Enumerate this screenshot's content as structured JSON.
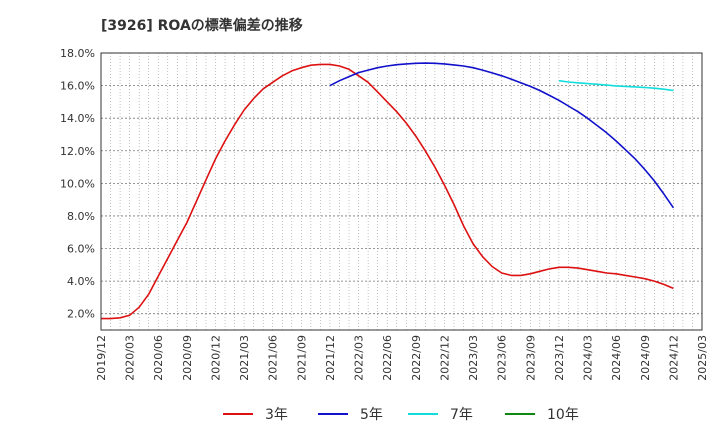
{
  "chart_data": {
    "type": "line",
    "title": "[3926]  ROAの標準偏差の推移",
    "xlabel": "",
    "ylabel": "",
    "ylim": [
      1.0,
      18.0
    ],
    "y_ticks": [
      "2.0%",
      "4.0%",
      "6.0%",
      "8.0%",
      "10.0%",
      "12.0%",
      "14.0%",
      "16.0%",
      "18.0%"
    ],
    "y_tick_values": [
      2,
      4,
      6,
      8,
      10,
      12,
      14,
      16,
      18
    ],
    "x_ticks": [
      "2019/12",
      "2020/03",
      "2020/06",
      "2020/09",
      "2020/12",
      "2021/03",
      "2021/06",
      "2021/09",
      "2021/12",
      "2022/03",
      "2022/06",
      "2022/09",
      "2022/12",
      "2023/03",
      "2023/06",
      "2023/09",
      "2023/12",
      "2024/03",
      "2024/06",
      "2024/09",
      "2024/12",
      "2025/03"
    ],
    "grid": true,
    "legend_position": "bottom",
    "series": [
      {
        "name": "3年",
        "color": "#dd1111",
        "x": [
          "2019/12",
          "2020/01",
          "2020/02",
          "2020/03",
          "2020/04",
          "2020/05",
          "2020/06",
          "2020/07",
          "2020/08",
          "2020/09",
          "2020/10",
          "2020/11",
          "2020/12",
          "2021/01",
          "2021/02",
          "2021/03",
          "2021/04",
          "2021/05",
          "2021/06",
          "2021/07",
          "2021/08",
          "2021/09",
          "2021/10",
          "2021/11",
          "2021/12",
          "2022/01",
          "2022/02",
          "2022/03",
          "2022/04",
          "2022/05",
          "2022/06",
          "2022/07",
          "2022/08",
          "2022/09",
          "2022/10",
          "2022/11",
          "2022/12",
          "2023/01",
          "2023/02",
          "2023/03",
          "2023/04",
          "2023/05",
          "2023/06",
          "2023/07",
          "2023/08",
          "2023/09",
          "2023/10",
          "2023/11",
          "2023/12",
          "2024/01",
          "2024/02",
          "2024/03",
          "2024/04",
          "2024/05",
          "2024/06",
          "2024/07",
          "2024/08",
          "2024/09",
          "2024/10",
          "2024/11",
          "2024/12"
        ],
        "values": [
          1.7,
          1.7,
          1.75,
          1.9,
          2.4,
          3.2,
          4.3,
          5.4,
          6.5,
          7.6,
          8.9,
          10.2,
          11.5,
          12.6,
          13.6,
          14.5,
          15.2,
          15.8,
          16.2,
          16.6,
          16.9,
          17.1,
          17.25,
          17.3,
          17.3,
          17.2,
          17.0,
          16.6,
          16.2,
          15.6,
          15.0,
          14.4,
          13.7,
          12.9,
          12.0,
          11.0,
          9.9,
          8.7,
          7.4,
          6.3,
          5.5,
          4.9,
          4.5,
          4.35,
          4.35,
          4.45,
          4.6,
          4.75,
          4.85,
          4.85,
          4.8,
          4.7,
          4.6,
          4.5,
          4.45,
          4.35,
          4.25,
          4.15,
          4.0,
          3.8,
          3.55
        ]
      },
      {
        "name": "5年",
        "color": "#1111cc",
        "x": [
          "2021/12",
          "2022/01",
          "2022/02",
          "2022/03",
          "2022/04",
          "2022/05",
          "2022/06",
          "2022/07",
          "2022/08",
          "2022/09",
          "2022/10",
          "2022/11",
          "2022/12",
          "2023/01",
          "2023/02",
          "2023/03",
          "2023/04",
          "2023/05",
          "2023/06",
          "2023/07",
          "2023/08",
          "2023/09",
          "2023/10",
          "2023/11",
          "2023/12",
          "2024/01",
          "2024/02",
          "2024/03",
          "2024/04",
          "2024/05",
          "2024/06",
          "2024/07",
          "2024/08",
          "2024/09",
          "2024/10",
          "2024/11",
          "2024/12"
        ],
        "values": [
          16.0,
          16.3,
          16.55,
          16.8,
          16.95,
          17.1,
          17.2,
          17.28,
          17.33,
          17.37,
          17.38,
          17.37,
          17.33,
          17.27,
          17.2,
          17.1,
          16.95,
          16.78,
          16.6,
          16.4,
          16.18,
          15.95,
          15.7,
          15.4,
          15.1,
          14.75,
          14.4,
          14.0,
          13.55,
          13.1,
          12.6,
          12.05,
          11.5,
          10.85,
          10.15,
          9.35,
          8.5
        ]
      },
      {
        "name": "7年",
        "color": "#11dddd",
        "x": [
          "2023/12",
          "2024/01",
          "2024/02",
          "2024/03",
          "2024/04",
          "2024/05",
          "2024/06",
          "2024/07",
          "2024/08",
          "2024/09",
          "2024/10",
          "2024/11",
          "2024/12"
        ],
        "values": [
          16.3,
          16.22,
          16.17,
          16.12,
          16.08,
          16.03,
          15.98,
          15.95,
          15.92,
          15.88,
          15.84,
          15.78,
          15.7
        ]
      },
      {
        "name": "10年",
        "color": "#118811",
        "x": [],
        "values": []
      }
    ]
  }
}
